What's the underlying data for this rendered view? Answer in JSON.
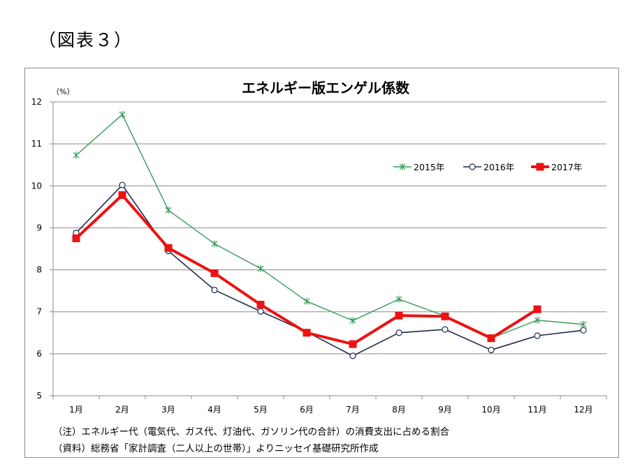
{
  "figure_label": "（図表３）",
  "notes": {
    "note": "（注）エネルギー代（電気代、ガス代、灯油代、ガソリン代の合計）の消費支出に占める割合",
    "source": "（資料）総務省「家計調査（二人以上の世帯）」よりニッセイ基礎研究所作成"
  },
  "chart_data": {
    "type": "line",
    "title": "エネルギー版エンゲル係数",
    "ylabel": "（%）",
    "xlabel": "",
    "categories": [
      "1月",
      "2月",
      "3月",
      "4月",
      "5月",
      "6月",
      "7月",
      "8月",
      "9月",
      "10月",
      "11月",
      "12月"
    ],
    "ylim": [
      5,
      12
    ],
    "yticks": [
      5,
      6,
      7,
      8,
      9,
      10,
      11,
      12
    ],
    "grid": true,
    "legend_position": "top-right",
    "series": [
      {
        "name": "2015年",
        "color": "#3a9a5c",
        "marker": "asterisk",
        "values": [
          10.73,
          11.7,
          9.42,
          8.62,
          8.03,
          7.25,
          6.79,
          7.3,
          6.9,
          6.37,
          6.8,
          6.7
        ]
      },
      {
        "name": "2016年",
        "color": "#1f2a4a",
        "marker": "open-circle",
        "values": [
          8.88,
          10.02,
          8.45,
          7.52,
          7.01,
          6.52,
          5.95,
          6.5,
          6.58,
          6.09,
          6.43,
          6.56
        ]
      },
      {
        "name": "2017年",
        "color": "#ee1111",
        "marker": "square",
        "values": [
          8.75,
          9.78,
          8.52,
          7.92,
          7.17,
          6.5,
          6.23,
          6.91,
          6.89,
          6.37,
          7.06,
          null
        ]
      }
    ]
  }
}
